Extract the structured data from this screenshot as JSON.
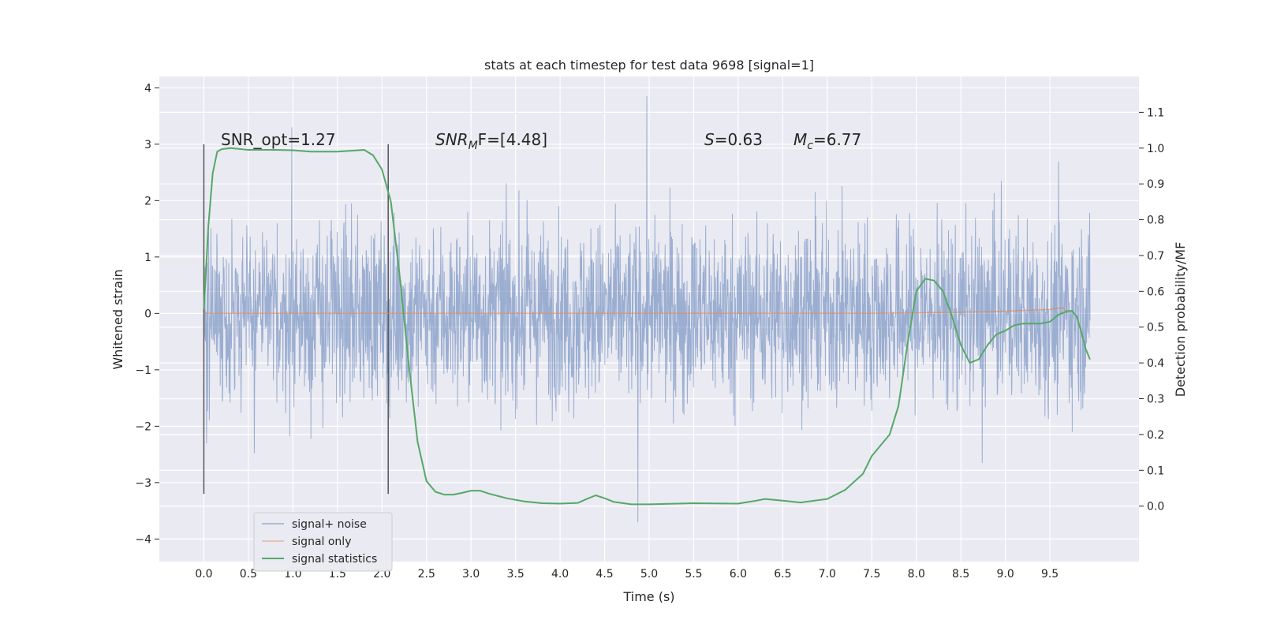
{
  "chart_data": {
    "type": "line",
    "title": "stats at each timestep for test data 9698 [signal=1]",
    "xlabel": "Time (s)",
    "ylabel": "Whitened strain",
    "y2label": "Detection probability/MF",
    "xlim": [
      -0.5,
      10.5
    ],
    "ylim": [
      -4.4,
      4.2
    ],
    "y2lim": [
      -0.155,
      1.2
    ],
    "x_ticks": [
      "0.0",
      "0.5",
      "1.0",
      "1.5",
      "2.0",
      "2.5",
      "3.0",
      "3.5",
      "4.0",
      "4.5",
      "5.0",
      "5.5",
      "6.0",
      "6.5",
      "7.0",
      "7.5",
      "8.0",
      "8.5",
      "9.0",
      "9.5"
    ],
    "y_ticks": [
      "−4",
      "−3",
      "−2",
      "−1",
      "0",
      "1",
      "2",
      "3",
      "4"
    ],
    "y2_ticks": [
      "0.0",
      "0.1",
      "0.2",
      "0.3",
      "0.4",
      "0.5",
      "0.6",
      "0.7",
      "0.8",
      "0.9",
      "1.0",
      "1.1"
    ],
    "grid": true,
    "legend_position": "lower-left",
    "annotations": {
      "snr_opt": "SNR_opt=1.27",
      "snr_mf_main": "SNR",
      "snr_mf_sub": "M",
      "snr_mf_rest": "F=[4.48]",
      "s_italic": "S",
      "s_rest": "=0.63",
      "mc_main": "M",
      "mc_sub": "c",
      "mc_rest": "=6.77"
    },
    "window_lines_x": [
      0.0,
      2.07
    ],
    "window_lines_y": [
      -3.2,
      3.0
    ],
    "series": [
      {
        "name": "signal+ noise",
        "color": "#4c72b0",
        "x_range": [
          0.0,
          9.95
        ],
        "y_band_typical": [
          -1.8,
          1.8
        ],
        "y_extremes": [
          -3.7,
          3.85
        ]
      },
      {
        "name": "signal only",
        "color": "#dd8452",
        "x": [
          0.0,
          7.5,
          8.5,
          9.0,
          9.5,
          9.65,
          9.7
        ],
        "y": [
          0.0,
          0.0,
          0.02,
          0.04,
          0.07,
          0.1,
          0.0
        ]
      },
      {
        "name": "signal statistics",
        "color": "#55a868",
        "axis": "right",
        "x": [
          0.0,
          0.05,
          0.1,
          0.15,
          0.2,
          0.3,
          0.5,
          0.8,
          1.0,
          1.2,
          1.5,
          1.8,
          1.9,
          2.0,
          2.1,
          2.2,
          2.3,
          2.4,
          2.5,
          2.6,
          2.7,
          2.8,
          2.9,
          3.0,
          3.1,
          3.2,
          3.4,
          3.6,
          3.8,
          4.0,
          4.2,
          4.3,
          4.4,
          4.5,
          4.6,
          4.8,
          5.0,
          5.5,
          6.0,
          6.2,
          6.3,
          6.5,
          6.7,
          7.0,
          7.2,
          7.4,
          7.5,
          7.6,
          7.7,
          7.8,
          7.9,
          8.0,
          8.1,
          8.2,
          8.3,
          8.4,
          8.5,
          8.6,
          8.7,
          8.8,
          8.9,
          9.0,
          9.1,
          9.2,
          9.3,
          9.4,
          9.5,
          9.6,
          9.7,
          9.75,
          9.8,
          9.85,
          9.9,
          9.95
        ],
        "y": [
          0.55,
          0.78,
          0.93,
          0.99,
          0.997,
          1.0,
          0.995,
          0.995,
          0.994,
          0.99,
          0.99,
          0.995,
          0.98,
          0.94,
          0.85,
          0.64,
          0.4,
          0.18,
          0.07,
          0.04,
          0.032,
          0.032,
          0.037,
          0.043,
          0.043,
          0.035,
          0.022,
          0.013,
          0.008,
          0.007,
          0.009,
          0.02,
          0.03,
          0.022,
          0.012,
          0.005,
          0.005,
          0.008,
          0.007,
          0.015,
          0.02,
          0.015,
          0.01,
          0.02,
          0.045,
          0.09,
          0.14,
          0.17,
          0.2,
          0.28,
          0.45,
          0.6,
          0.635,
          0.63,
          0.6,
          0.53,
          0.45,
          0.4,
          0.41,
          0.45,
          0.48,
          0.49,
          0.505,
          0.51,
          0.51,
          0.51,
          0.515,
          0.535,
          0.545,
          0.545,
          0.53,
          0.49,
          0.44,
          0.41
        ]
      }
    ]
  }
}
